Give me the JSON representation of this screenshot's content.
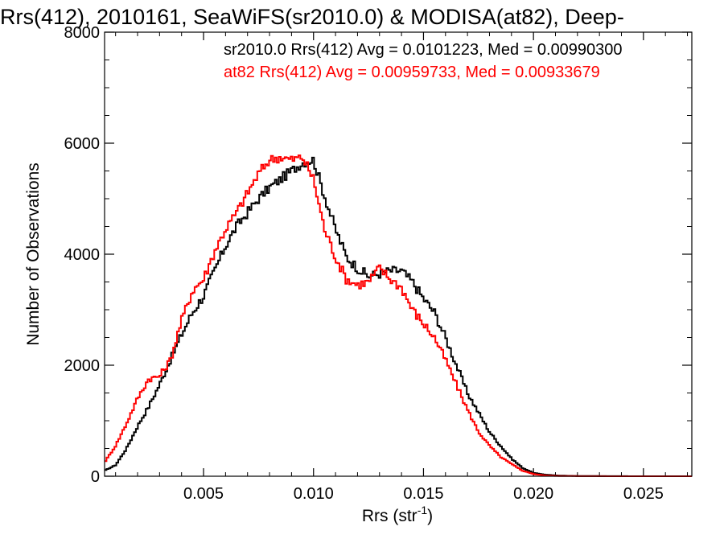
{
  "chart_data": {
    "type": "line",
    "style": "step histogram",
    "title": "Rrs(412), 2010161, SeaWiFS(sr2010.0) & MODISA(at82), Deep-",
    "xlabel": {
      "main": "Rrs (str",
      "sup": "-1",
      "close": ")"
    },
    "ylabel": "Number of Observations",
    "xlim": [
      0.0005,
      0.0272
    ],
    "ylim": [
      0,
      8000
    ],
    "x_ticks": [
      {
        "value": 0.005,
        "label": "0.005"
      },
      {
        "value": 0.01,
        "label": "0.010"
      },
      {
        "value": 0.015,
        "label": "0.015"
      },
      {
        "value": 0.02,
        "label": "0.020"
      },
      {
        "value": 0.025,
        "label": "0.025"
      }
    ],
    "y_ticks": [
      {
        "value": 0,
        "label": "0"
      },
      {
        "value": 2000,
        "label": "2000"
      },
      {
        "value": 4000,
        "label": "4000"
      },
      {
        "value": 6000,
        "label": "6000"
      },
      {
        "value": 8000,
        "label": "8000"
      }
    ],
    "grid": false,
    "legend_position": "top-right",
    "series": [
      {
        "name": "sr2010.0",
        "label": "sr2010.0 Rrs(412) Avg = 0.0101223, Med = 0.00990300",
        "color": "#000000",
        "x": [
          0.0005,
          0.001,
          0.0015,
          0.002,
          0.0025,
          0.003,
          0.0035,
          0.004,
          0.0045,
          0.005,
          0.0055,
          0.006,
          0.0065,
          0.007,
          0.0075,
          0.008,
          0.0085,
          0.009,
          0.0095,
          0.01,
          0.0105,
          0.011,
          0.0115,
          0.012,
          0.0125,
          0.013,
          0.0135,
          0.014,
          0.0145,
          0.015,
          0.0155,
          0.016,
          0.0165,
          0.017,
          0.0175,
          0.018,
          0.0185,
          0.019,
          0.0195,
          0.02,
          0.0205,
          0.021,
          0.0215,
          0.022,
          0.0225,
          0.023,
          0.024,
          0.025,
          0.026,
          0.0272
        ],
        "y": [
          100,
          200,
          500,
          900,
          1250,
          1650,
          2100,
          2550,
          2950,
          3250,
          3700,
          4150,
          4500,
          4750,
          5000,
          5200,
          5350,
          5500,
          5650,
          5700,
          5050,
          4450,
          3950,
          3750,
          3600,
          3650,
          3700,
          3700,
          3500,
          3200,
          2950,
          2500,
          2000,
          1500,
          1150,
          800,
          550,
          320,
          150,
          60,
          30,
          15,
          8,
          5,
          3,
          2,
          1,
          0,
          0,
          0
        ]
      },
      {
        "name": "at82",
        "label": "at82 Rrs(412) Avg = 0.00959733, Med = 0.00933679",
        "color": "#ff0000",
        "x": [
          0.0005,
          0.001,
          0.0015,
          0.002,
          0.0025,
          0.003,
          0.0035,
          0.004,
          0.0045,
          0.005,
          0.0055,
          0.006,
          0.0065,
          0.007,
          0.0075,
          0.008,
          0.0085,
          0.009,
          0.0095,
          0.01,
          0.0105,
          0.011,
          0.0115,
          0.012,
          0.0125,
          0.013,
          0.0135,
          0.014,
          0.0145,
          0.015,
          0.0155,
          0.016,
          0.0165,
          0.017,
          0.0175,
          0.018,
          0.0185,
          0.019,
          0.0195,
          0.02,
          0.0205,
          0.021,
          0.0215,
          0.022,
          0.0225,
          0.023,
          0.024,
          0.025,
          0.026,
          0.0272
        ],
        "y": [
          250,
          550,
          950,
          1400,
          1750,
          1800,
          2100,
          2800,
          3350,
          3550,
          4050,
          4450,
          4750,
          5100,
          5450,
          5700,
          5750,
          5700,
          5750,
          5350,
          4450,
          3950,
          3550,
          3450,
          3500,
          3750,
          3550,
          3400,
          3000,
          2750,
          2500,
          2100,
          1650,
          1200,
          800,
          550,
          350,
          220,
          100,
          40,
          15,
          6,
          3,
          2,
          1,
          1,
          0,
          0,
          0,
          0
        ]
      }
    ]
  }
}
